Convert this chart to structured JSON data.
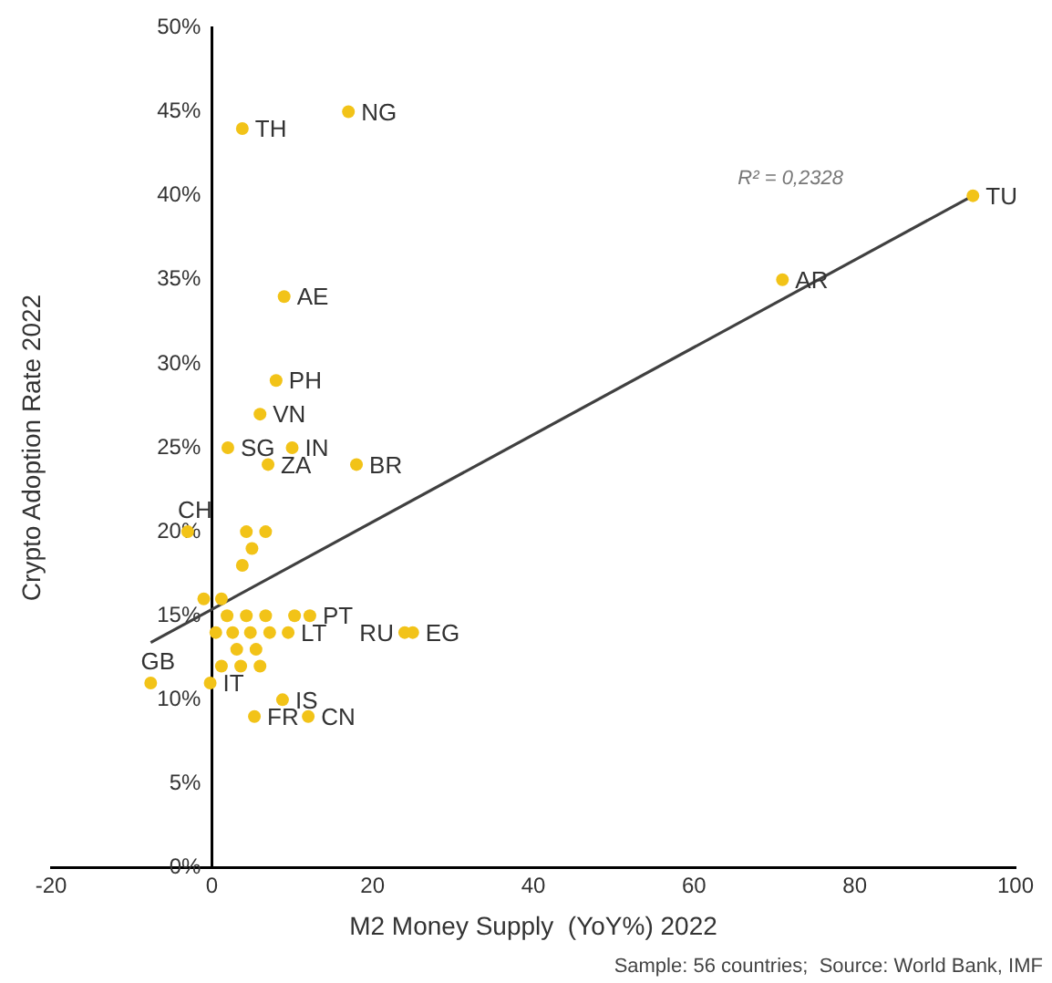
{
  "chart_data": {
    "type": "scatter",
    "xlabel": "M2 Money Supply  (YoY%) 2022",
    "ylabel": "Crypto Adoption Rate 2022",
    "annotations": [
      "R² = 0,2328",
      "Sample: 56 countries;  Source: World Bank, IMF"
    ],
    "xlim": [
      -20,
      100
    ],
    "xticks": [
      -20,
      0,
      20,
      40,
      60,
      80,
      100
    ],
    "ylim": [
      0,
      50
    ],
    "yticks": [
      {
        "value": 0,
        "label": "0%"
      },
      {
        "value": 5,
        "label": "5%"
      },
      {
        "value": 10,
        "label": "10%"
      },
      {
        "value": 15,
        "label": "15%"
      },
      {
        "value": 20,
        "label": "20%"
      },
      {
        "value": 25,
        "label": "25%"
      },
      {
        "value": 30,
        "label": "30%"
      },
      {
        "value": 35,
        "label": "35%"
      },
      {
        "value": 40,
        "label": "40%"
      },
      {
        "value": 45,
        "label": "45%"
      },
      {
        "value": 50,
        "label": "50%"
      }
    ],
    "grid": false,
    "legend": false,
    "series": [
      {
        "type": "scatter",
        "marker": "circle",
        "color": "#f2c318",
        "x": [
          3.8,
          17,
          94.7,
          71,
          9,
          8,
          6,
          2,
          10,
          7,
          18,
          -3,
          4.3,
          6.7,
          5,
          3.8,
          -1,
          1.2,
          1.9,
          4.3,
          6.7,
          10.3,
          12.2,
          0.5,
          2.6,
          4.8,
          7.2,
          9.5,
          24,
          25,
          3.1,
          5.5,
          1.2,
          3.6,
          6,
          -7.6,
          -0.2,
          8.8,
          5.3,
          12
        ],
        "values": [
          44,
          45,
          40,
          35,
          34,
          29,
          27,
          25,
          25,
          24,
          24,
          20,
          20,
          20,
          19,
          18,
          16,
          16,
          15,
          15,
          15,
          15,
          15,
          14,
          14,
          14,
          14,
          14,
          14,
          14,
          13,
          13,
          12,
          12,
          12,
          11,
          11,
          10,
          9,
          9
        ],
        "value_labels": [
          "TH",
          "NG",
          "TU",
          "AR",
          "AE",
          "PH",
          "VN",
          "SG",
          "IN",
          "ZA",
          "BR",
          "CH",
          null,
          null,
          null,
          null,
          null,
          null,
          null,
          null,
          null,
          null,
          "PT",
          null,
          null,
          null,
          null,
          "LT",
          "RU",
          "EG",
          null,
          null,
          null,
          null,
          null,
          "GB",
          "IT",
          "IS",
          "FR",
          "CN"
        ]
      },
      {
        "type": "line",
        "color": "#404040",
        "x": [
          -7.6,
          94.7
        ],
        "values": [
          13.4,
          40
        ]
      }
    ]
  }
}
